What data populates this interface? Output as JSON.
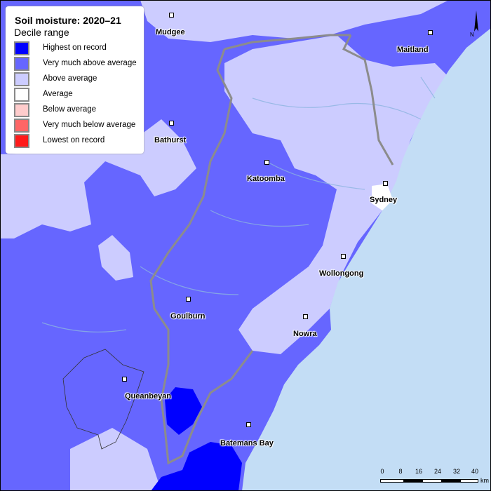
{
  "legend": {
    "title": "Soil moisture: 2020–21",
    "subtitle": "Decile range",
    "items": [
      {
        "label": "Highest on record",
        "color": "#0000ff"
      },
      {
        "label": "Very much above average",
        "color": "#6666ff"
      },
      {
        "label": "Above average",
        "color": "#ccccff"
      },
      {
        "label": "Average",
        "color": "#ffffff"
      },
      {
        "label": "Below average",
        "color": "#ffcccc"
      },
      {
        "label": "Very much below average",
        "color": "#ff6666"
      },
      {
        "label": "Lowest on record",
        "color": "#ff1a1a"
      }
    ]
  },
  "towns": [
    "Mudgee",
    "Maitland",
    "Bathurst",
    "Katoomba",
    "Sydney",
    "Wollongong",
    "Goulburn",
    "Nowra",
    "Queanbeyan",
    "Batemans Bay"
  ],
  "scale": {
    "ticks": [
      "0",
      "8",
      "16",
      "24",
      "32",
      "40"
    ],
    "unit": "km"
  },
  "north": {
    "label": "N"
  },
  "colors": {
    "ocean": "#c3ddf5",
    "land_vmaa": "#6666ff",
    "land_aa": "#ccccff",
    "land_highest": "#0000ff",
    "rivers": "#8cb4e0",
    "divide": "#8c8c8c"
  }
}
